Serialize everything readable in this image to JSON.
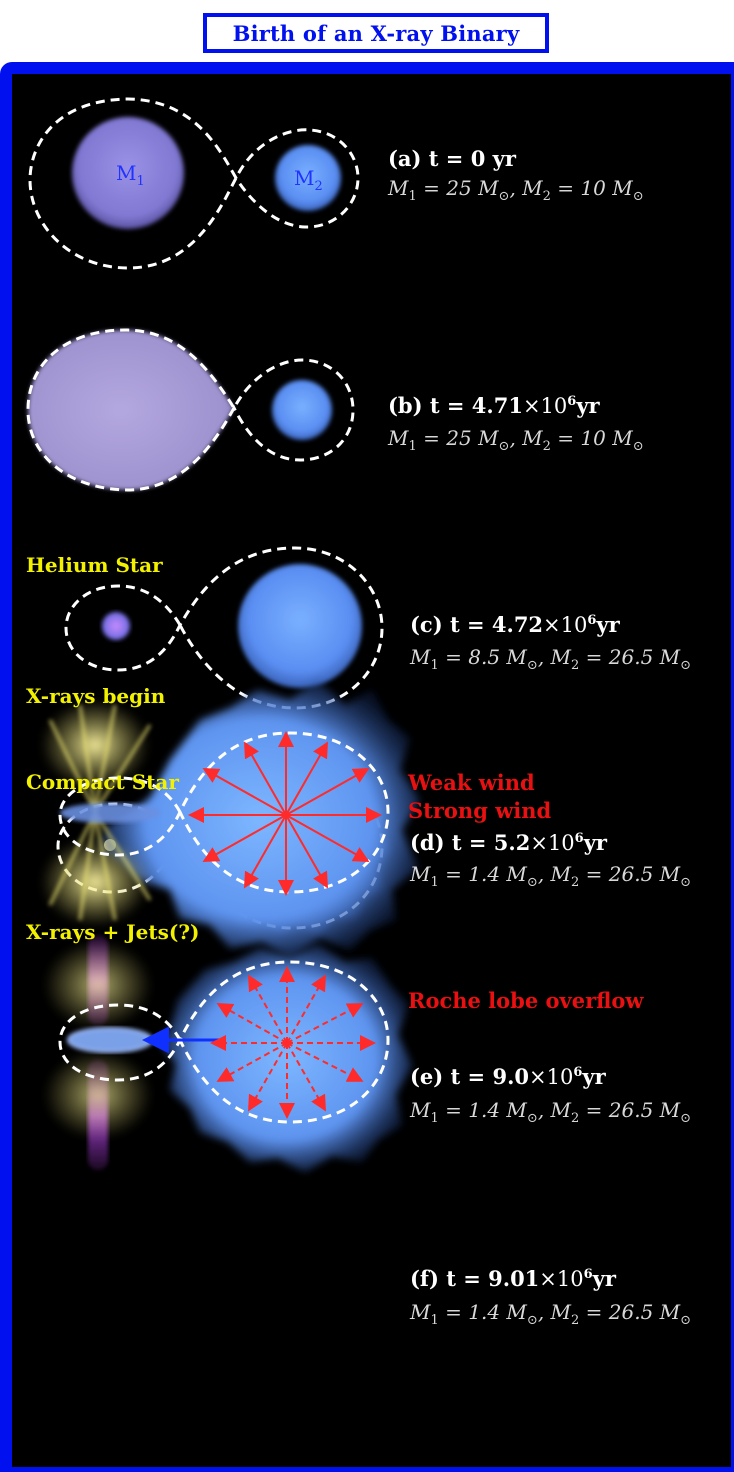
{
  "title": "Birth of an X-ray Binary",
  "star_labels": {
    "m1": "M",
    "m1_sub": "1",
    "m2": "M",
    "m2_sub": "2"
  },
  "colors": {
    "frame": "#0010ee",
    "background": "#000000",
    "annotation_yellow": "#f2f200",
    "annotation_red": "#e81010",
    "star_blue": "#5a8ef2",
    "star_violet": "#8a82d8"
  },
  "stages": [
    {
      "id": "a",
      "prefix": "(a) t = ",
      "value": "0",
      "suffix": " yr",
      "times": "",
      "exp": "",
      "m1": "25",
      "m2": "10",
      "note": ""
    },
    {
      "id": "b",
      "prefix": "(b) t = ",
      "value": "4.71",
      "suffix": "yr",
      "times": "×10",
      "exp": "6",
      "m1": "25",
      "m2": "10",
      "note": ""
    },
    {
      "id": "c",
      "prefix": "(c) t = ",
      "value": "4.72",
      "suffix": "yr",
      "times": "×10",
      "exp": "6",
      "m1": "8.5",
      "m2": "26.5",
      "note": "Helium Star"
    },
    {
      "id": "d",
      "prefix": "(d) t = ",
      "value": "5.2",
      "suffix": "yr",
      "times": "×10",
      "exp": "6",
      "m1": "1.4",
      "m2": "26.5",
      "note": "Compact Star",
      "wind": "Weak wind"
    },
    {
      "id": "e",
      "prefix": "(e) t = ",
      "value": "9.0",
      "suffix": "yr",
      "times": "×10",
      "exp": "6",
      "m1": "1.4",
      "m2": "26.5",
      "note": "X-rays begin",
      "wind": "Strong wind"
    },
    {
      "id": "f",
      "prefix": "(f) t = ",
      "value": "9.01",
      "suffix": "yr",
      "times": "×10",
      "exp": "6",
      "m1": "1.4",
      "m2": "26.5",
      "note": "X-rays + Jets(?)",
      "wind": "Roche lobe overflow"
    }
  ],
  "mass_symbols": {
    "m1": "M",
    "m2": "M",
    "sub1": "1",
    "sub2": "2",
    "eq": " = ",
    "unit": "M",
    "sun": "⊙",
    "sep": ", "
  }
}
